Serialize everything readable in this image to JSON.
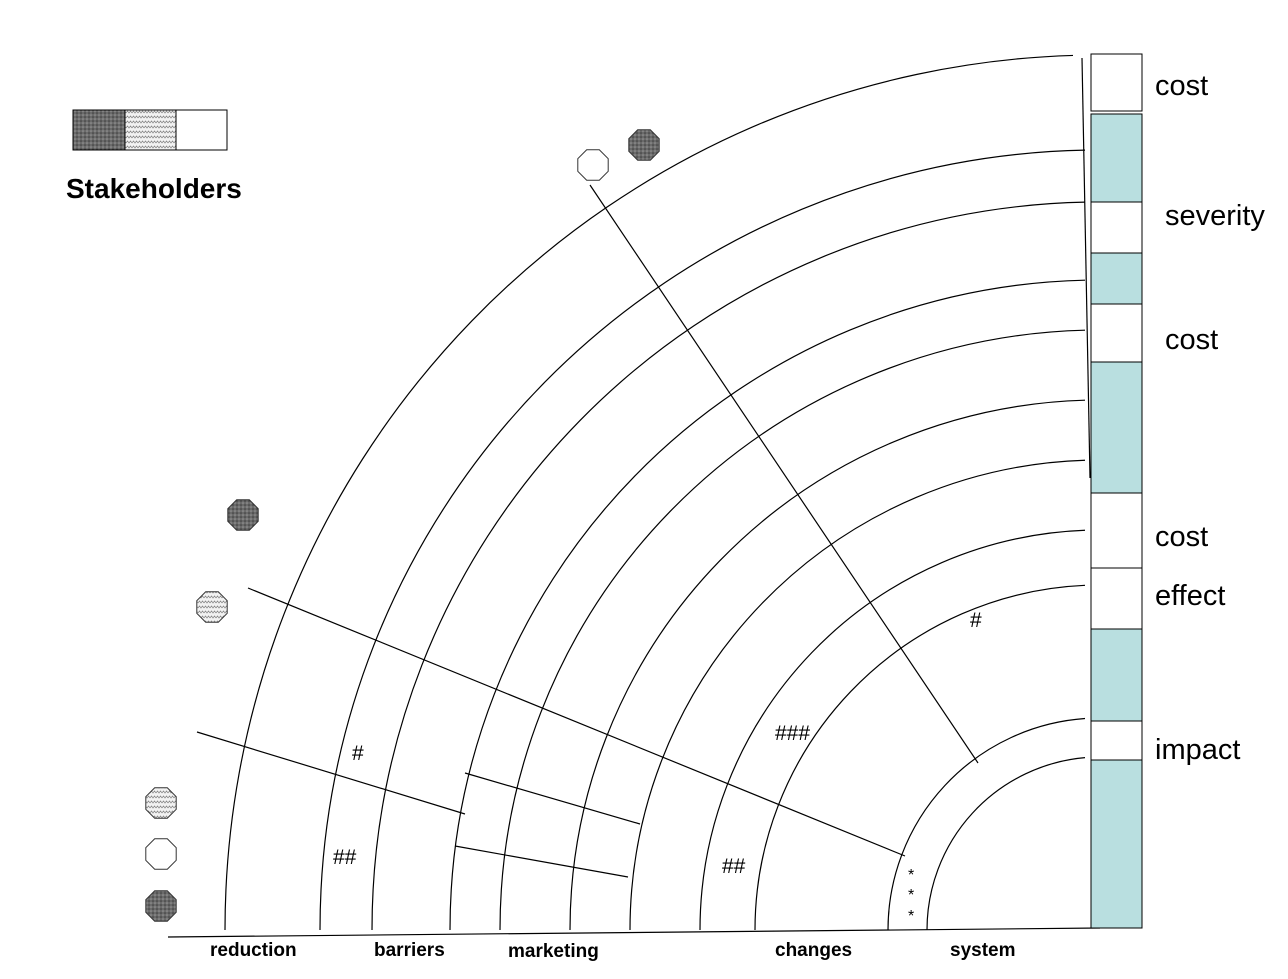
{
  "legend": {
    "title": "Stakeholders",
    "swatches": [
      "dark-dotted",
      "light-wavy",
      "white"
    ]
  },
  "colors": {
    "teal": "#b9dfe0",
    "dark": "#555555",
    "light": "#e6e6e6",
    "line": "#000000"
  },
  "right_labels": [
    "cost",
    "severity",
    "cost",
    "cost",
    "effect",
    "impact"
  ],
  "bottom_labels": [
    "reduction",
    "barriers",
    "marketing",
    "changes",
    "system"
  ],
  "marks": {
    "single_hash_a": "#",
    "single_hash_b": "#",
    "double_hash_a": "##",
    "double_hash_b": "##",
    "triple_hash": "###",
    "asterisks": [
      "*",
      "*",
      "*"
    ]
  },
  "stakeholder_markers": [
    {
      "style": "white"
    },
    {
      "style": "dark"
    },
    {
      "style": "dark"
    },
    {
      "style": "light"
    },
    {
      "style": "light"
    },
    {
      "style": "white"
    },
    {
      "style": "dark"
    }
  ]
}
